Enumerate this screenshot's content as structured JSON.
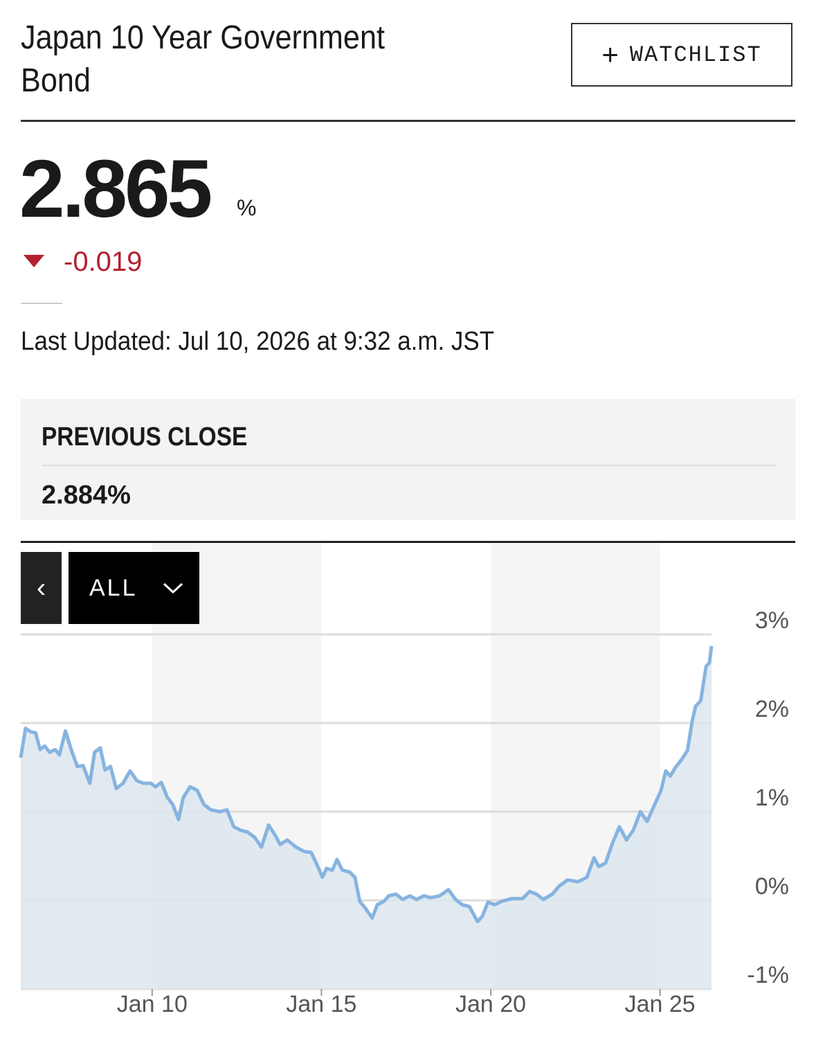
{
  "header": {
    "title": "Japan 10 Year Government Bond",
    "watchlist": "WATCHLIST"
  },
  "quote": {
    "price": "2.865",
    "unit": "%",
    "change": "-0.019",
    "last_updated": "Last Updated: Jul 10, 2026 at 9:32 a.m. JST",
    "previous_close_label": "PREVIOUS CLOSE",
    "previous_close": "2.884%"
  },
  "range_selector": "ALL",
  "chart_data": {
    "type": "area",
    "color": "#86b4e0",
    "fill": "#dde6ef",
    "grid": true,
    "x": [
      6.12,
      6.26,
      6.42,
      6.56,
      6.69,
      6.83,
      6.97,
      7.14,
      7.26,
      7.44,
      7.61,
      7.79,
      7.96,
      8.16,
      8.3,
      8.47,
      8.61,
      8.77,
      8.94,
      9.14,
      9.35,
      9.55,
      9.75,
      9.96,
      10.1,
      10.27,
      10.45,
      10.61,
      10.78,
      10.92,
      11.12,
      11.33,
      11.53,
      11.74,
      12.0,
      12.21,
      12.41,
      12.62,
      12.82,
      13.03,
      13.23,
      13.44,
      13.64,
      13.78,
      13.99,
      14.25,
      14.5,
      14.7,
      14.87,
      15.03,
      15.15,
      15.32,
      15.46,
      15.62,
      15.83,
      15.99,
      16.13,
      16.3,
      16.5,
      16.65,
      16.85,
      16.99,
      17.2,
      17.4,
      17.61,
      17.81,
      18.02,
      18.22,
      18.49,
      18.75,
      18.96,
      19.16,
      19.37,
      19.61,
      19.75,
      19.92,
      20.12,
      20.33,
      20.63,
      20.94,
      21.15,
      21.35,
      21.55,
      21.82,
      22.02,
      22.27,
      22.58,
      22.84,
      23.05,
      23.19,
      23.39,
      23.6,
      23.8,
      24.01,
      24.21,
      24.42,
      24.62,
      24.83,
      25.03,
      25.17,
      25.3,
      25.44,
      25.64,
      25.81,
      25.95,
      26.05,
      26.2,
      26.36,
      26.46,
      26.52
    ],
    "values": [
      1.61,
      1.94,
      1.9,
      1.89,
      1.7,
      1.74,
      1.67,
      1.7,
      1.64,
      1.91,
      1.7,
      1.51,
      1.52,
      1.32,
      1.67,
      1.72,
      1.47,
      1.51,
      1.26,
      1.32,
      1.46,
      1.35,
      1.32,
      1.32,
      1.28,
      1.33,
      1.16,
      1.08,
      0.91,
      1.16,
      1.28,
      1.24,
      1.08,
      1.02,
      1.0,
      1.02,
      0.83,
      0.79,
      0.77,
      0.71,
      0.6,
      0.85,
      0.73,
      0.63,
      0.68,
      0.6,
      0.55,
      0.54,
      0.4,
      0.26,
      0.36,
      0.34,
      0.46,
      0.34,
      0.32,
      0.26,
      -0.01,
      -0.09,
      -0.2,
      -0.05,
      -0.01,
      0.05,
      0.07,
      0.01,
      0.05,
      0.01,
      0.05,
      0.03,
      0.05,
      0.12,
      0.01,
      -0.05,
      -0.07,
      -0.24,
      -0.18,
      -0.02,
      -0.05,
      -0.01,
      0.02,
      0.02,
      0.1,
      0.07,
      0.01,
      0.07,
      0.16,
      0.23,
      0.21,
      0.26,
      0.48,
      0.38,
      0.42,
      0.65,
      0.83,
      0.68,
      0.79,
      1.0,
      0.89,
      1.07,
      1.24,
      1.46,
      1.4,
      1.49,
      1.59,
      1.69,
      2.02,
      2.19,
      2.25,
      2.64,
      2.68,
      2.87
    ],
    "xlim": [
      6.12,
      26.52
    ],
    "xticks": [
      {
        "value": 10,
        "label": "Jan 10"
      },
      {
        "value": 15,
        "label": "Jan 15"
      },
      {
        "value": 20,
        "label": "Jan 20"
      },
      {
        "value": 25,
        "label": "Jan 25"
      }
    ],
    "ylim": [
      -1,
      3
    ],
    "yticks": [
      {
        "value": -1,
        "label": "-1%"
      },
      {
        "value": 0,
        "label": "0%"
      },
      {
        "value": 1,
        "label": "1%"
      },
      {
        "value": 2,
        "label": "2%"
      },
      {
        "value": 3,
        "label": "3%"
      }
    ]
  }
}
